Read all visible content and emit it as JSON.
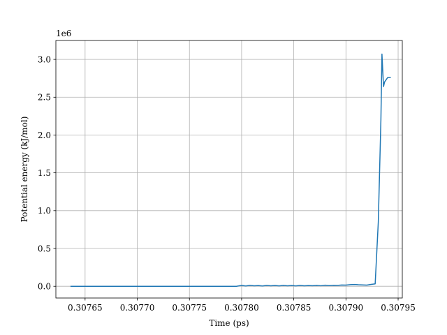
{
  "chart_data": {
    "type": "line",
    "xlabel": "Time (ps)",
    "ylabel": "Potential energy (kJ/mol)",
    "y_offset_label": "1e6",
    "xlim": [
      0.307622,
      0.307954
    ],
    "ylim": [
      -0.155,
      3.25
    ],
    "grid": true,
    "x_ticks": [
      0.30765,
      0.3077,
      0.30775,
      0.3078,
      0.30785,
      0.3079,
      0.30795
    ],
    "x_tick_labels": [
      "0.30765",
      "0.30770",
      "0.30775",
      "0.30780",
      "0.30785",
      "0.30790",
      "0.30795"
    ],
    "y_ticks": [
      0.0,
      0.5,
      1.0,
      1.5,
      2.0,
      2.5,
      3.0
    ],
    "y_tick_labels": [
      "0.0",
      "0.5",
      "1.0",
      "1.5",
      "2.0",
      "2.5",
      "3.0"
    ],
    "series": [
      {
        "color": "#1f77b4",
        "x": [
          0.307636,
          0.3077,
          0.30775,
          0.307795,
          0.3078,
          0.307804,
          0.307808,
          0.307812,
          0.307816,
          0.30782,
          0.307824,
          0.307828,
          0.307832,
          0.307836,
          0.30784,
          0.307844,
          0.307848,
          0.307852,
          0.307856,
          0.30786,
          0.307864,
          0.307868,
          0.307872,
          0.307876,
          0.30788,
          0.307884,
          0.307888,
          0.307892,
          0.307896,
          0.3079,
          0.307904,
          0.307908,
          0.307912,
          0.307916,
          0.30792,
          0.307924,
          0.307928,
          0.307931,
          0.3079335,
          0.3079345,
          0.307936,
          0.307937,
          0.30794,
          0.307943
        ],
        "y": [
          0.0,
          0.0,
          0.0,
          0.0,
          0.012,
          0.004,
          0.013,
          0.006,
          0.01,
          0.004,
          0.012,
          0.006,
          0.011,
          0.005,
          0.012,
          0.006,
          0.011,
          0.005,
          0.012,
          0.006,
          0.01,
          0.008,
          0.012,
          0.007,
          0.015,
          0.009,
          0.013,
          0.012,
          0.017,
          0.016,
          0.022,
          0.024,
          0.02,
          0.018,
          0.016,
          0.025,
          0.032,
          0.85,
          2.2,
          3.07,
          2.64,
          2.7,
          2.76,
          2.76
        ]
      }
    ]
  }
}
